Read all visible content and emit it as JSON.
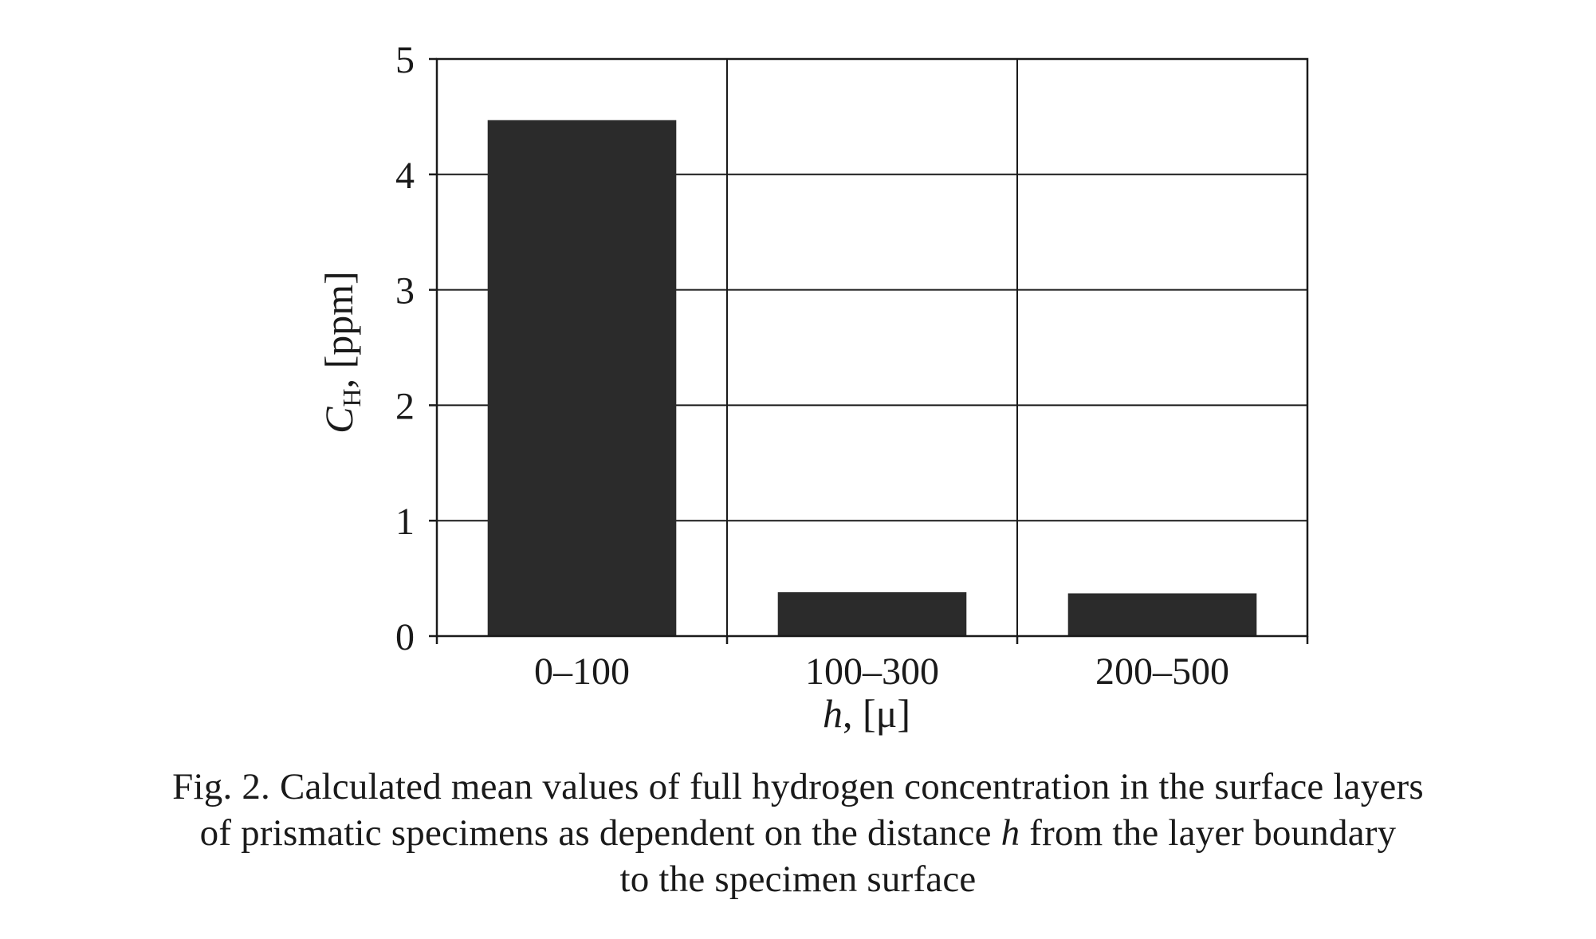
{
  "chart_data": {
    "type": "bar",
    "categories": [
      "0–100",
      "100–300",
      "200–500"
    ],
    "values": [
      4.47,
      0.38,
      0.37
    ],
    "ylim": [
      0,
      5
    ],
    "yticks": [
      0,
      1,
      2,
      3,
      4,
      5
    ],
    "grid": true,
    "ylabel": {
      "symbol": "C",
      "subscript": "H",
      "unit": ", [ppm]"
    },
    "xlabel": {
      "symbol": "h",
      "unit": ", [μ]"
    },
    "bar_color": "#2b2b2b"
  },
  "caption": {
    "line1": "Fig. 2. Calculated mean values of full hydrogen concentration in the surface layers",
    "line2_before": "of prismatic specimens as dependent on the distance ",
    "line2_symbol": "h",
    "line2_after": " from the layer boundary",
    "line3": "to the specimen surface"
  }
}
